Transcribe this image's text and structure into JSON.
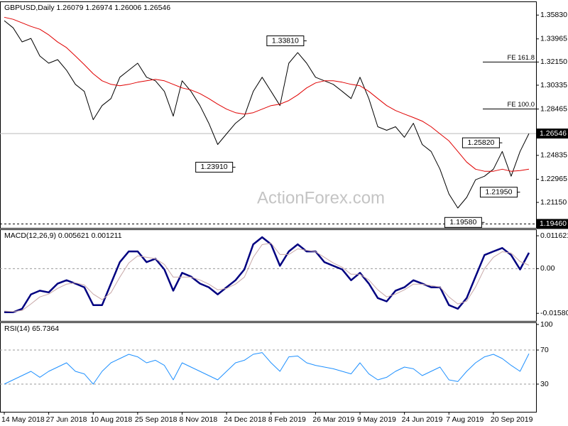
{
  "chart_data": [
    {
      "type": "line",
      "title": "GBPUSD,Daily  1.26079 1.26974 1.26006 1.26546",
      "categories": [
        "14 May 2018",
        null,
        null,
        null,
        null,
        "27 Jun 2018",
        null,
        null,
        null,
        null,
        "10 Aug 2018",
        null,
        null,
        null,
        null,
        "25 Sep 2018",
        null,
        null,
        null,
        null,
        "8 Nov 2018",
        null,
        null,
        null,
        null,
        "24 Dec 2018",
        null,
        null,
        null,
        null,
        "8 Feb 2019",
        null,
        null,
        null,
        null,
        "26 Mar 2019",
        null,
        null,
        null,
        null,
        "9 May 2019",
        null,
        null,
        null,
        null,
        "24 Jun 2019",
        null,
        null,
        null,
        null,
        "7 Aug 2019",
        null,
        null,
        null,
        null,
        "20 Sep 2019",
        null,
        null,
        null,
        null
      ],
      "series": [
        {
          "color": "#000000",
          "width": 1,
          "values": [
            1.3539,
            1.3483,
            1.3373,
            1.34,
            1.3262,
            1.3206,
            1.3234,
            1.3151,
            1.304,
            1.2985,
            1.2763,
            1.2874,
            1.2929,
            1.3096,
            1.3151,
            1.3206,
            1.3096,
            1.3068,
            1.2985,
            1.2791,
            1.3068,
            1.2985,
            1.2874,
            1.2735,
            1.2569,
            1.2652,
            1.2735,
            1.2791,
            1.2985,
            1.3096,
            1.2985,
            1.2874,
            1.3206,
            1.3289,
            1.3206,
            1.3096,
            1.3068,
            1.304,
            1.2985,
            1.2929,
            1.3096,
            1.2929,
            1.2708,
            1.268,
            1.2708,
            1.2625,
            1.2735,
            1.2569,
            1.2514,
            1.2375,
            1.2181,
            1.2071,
            1.2154,
            1.2292,
            1.232,
            1.2375,
            1.2514,
            1.232,
            1.2514,
            1.26546
          ]
        },
        {
          "color": "#e00000",
          "width": 1,
          "values": [
            1.3566,
            1.355,
            1.3522,
            1.3494,
            1.3472,
            1.3428,
            1.3372,
            1.3328,
            1.3262,
            1.3195,
            1.3123,
            1.3068,
            1.304,
            1.3029,
            1.304,
            1.3057,
            1.3068,
            1.3079,
            1.3068,
            1.304,
            1.3012,
            1.2996,
            1.2968,
            1.2929,
            1.2885,
            1.2846,
            1.2818,
            1.2807,
            1.2818,
            1.2846,
            1.2874,
            1.2885,
            1.2913,
            1.2957,
            1.3012,
            1.3051,
            1.3068,
            1.3068,
            1.3057,
            1.304,
            1.3029,
            1.2985,
            1.2929,
            1.2874,
            1.2835,
            1.2807,
            1.278,
            1.2752,
            1.2708,
            1.2652,
            1.2597,
            1.2514,
            1.2431,
            1.2375,
            1.2359,
            1.2359,
            1.2375,
            1.2359,
            1.2364,
            1.2375
          ]
        }
      ],
      "ylim": [
        1.1915,
        1.369
      ],
      "yticks": [
        {
          "value": 1.3583,
          "label": "1.35830"
        },
        1.33965,
        {
          "value": 1.3215,
          "label": "1.32150"
        },
        1.30335,
        1.28465,
        1.24835,
        1.22965,
        {
          "value": 1.2115,
          "label": "1.21150"
        }
      ],
      "price_line": 1.26546,
      "support_line": {
        "value": 1.1946,
        "label": "1.19460"
      },
      "fib_levels": [
        {
          "label": "FE 161.8",
          "value": 1.3215
        },
        {
          "label": "FE 100.0",
          "value": 1.2847
        }
      ],
      "annotations": [
        {
          "label": "1.33810",
          "value": 1.3381,
          "at": 34
        },
        {
          "label": "1.23910",
          "value": 1.2391,
          "at": 26
        },
        {
          "label": "1.25820",
          "value": 1.2582,
          "at": 56
        },
        {
          "label": "1.21950",
          "value": 1.2195,
          "at": 58
        },
        {
          "label": "1.19580",
          "value": 1.1958,
          "at": 54
        }
      ],
      "watermark": "ActionForex.com"
    },
    {
      "type": "line",
      "title": "MACD(12,26,9) 0.005621 0.001211",
      "series": [
        {
          "color": "#000080",
          "width": 2.5,
          "values": [
            -0.0154,
            -0.0154,
            -0.0142,
            -0.0091,
            -0.0078,
            -0.0084,
            -0.0053,
            -0.0041,
            -0.0053,
            -0.0066,
            -0.0129,
            -0.0129,
            -0.0053,
            0.0023,
            0.0061,
            0.0061,
            0.0023,
            0.0035,
            -0.0003,
            -0.0078,
            -0.0015,
            -0.0028,
            -0.0053,
            -0.0066,
            -0.0091,
            -0.0066,
            -0.0041,
            -0.0003,
            0.0086,
            0.0111,
            0.0086,
            0.001,
            0.0061,
            0.0086,
            0.0061,
            0.0061,
            0.0023,
            0.001,
            -0.0003,
            -0.0041,
            -0.0015,
            -0.0053,
            -0.0104,
            -0.0116,
            -0.0078,
            -0.0066,
            -0.0041,
            -0.0053,
            -0.0066,
            -0.0066,
            -0.0129,
            -0.0142,
            -0.0104,
            -0.0028,
            0.0048,
            0.0061,
            0.0073,
            0.0048,
            -0.0003,
            0.005621
          ]
        },
        {
          "color": "#c8a8a8",
          "width": 1,
          "values": [
            -0.015,
            -0.0152,
            -0.0148,
            -0.0125,
            -0.01,
            -0.009,
            -0.007,
            -0.0055,
            -0.005,
            -0.0058,
            -0.009,
            -0.011,
            -0.0085,
            -0.003,
            0.002,
            0.0045,
            0.004,
            0.0035,
            0.0015,
            -0.003,
            -0.003,
            -0.003,
            -0.004,
            -0.0055,
            -0.0075,
            -0.007,
            -0.0055,
            -0.003,
            0.004,
            0.0085,
            0.009,
            0.005,
            0.005,
            0.007,
            0.0065,
            0.006,
            0.004,
            0.002,
            0.0005,
            -0.002,
            -0.002,
            -0.004,
            -0.0075,
            -0.01,
            -0.009,
            -0.0075,
            -0.0055,
            -0.0055,
            -0.006,
            -0.0065,
            -0.01,
            -0.0125,
            -0.0115,
            -0.0065,
            0.0,
            0.004,
            0.006,
            0.0055,
            0.0025,
            0.001211
          ]
        }
      ],
      "ylim": [
        -0.0185,
        0.0139
      ],
      "yticks": [
        0.011621,
        {
          "value": 0,
          "label": "0.00"
        },
        -0.015803
      ],
      "levels": [
        0
      ]
    },
    {
      "type": "line",
      "title": "RSI(14) 65.7364",
      "series": [
        {
          "color": "#1e90ff",
          "width": 1,
          "values": [
            30,
            35,
            40,
            45,
            38,
            45,
            50,
            55,
            45,
            42,
            30,
            45,
            55,
            60,
            65,
            62,
            55,
            58,
            52,
            35,
            55,
            50,
            45,
            40,
            35,
            45,
            55,
            58,
            65,
            67,
            55,
            45,
            62,
            63,
            55,
            52,
            50,
            48,
            45,
            42,
            55,
            42,
            35,
            38,
            45,
            50,
            48,
            40,
            45,
            50,
            35,
            33,
            45,
            55,
            62,
            65,
            60,
            52,
            45,
            65.7364
          ]
        }
      ],
      "ylim": [
        -2.5,
        102.5
      ],
      "yticks": [
        100,
        70,
        30
      ],
      "levels": [
        70,
        30
      ]
    }
  ]
}
